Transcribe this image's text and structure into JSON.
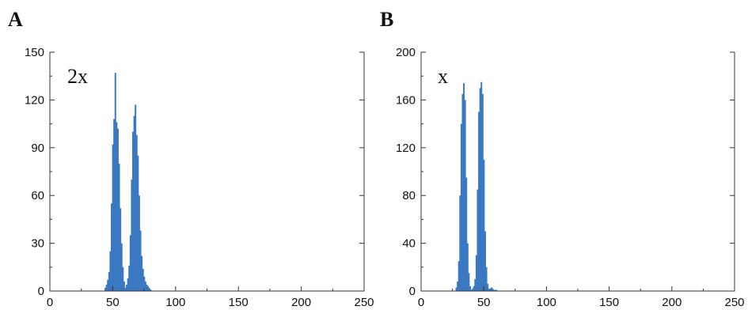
{
  "chart_data": [
    {
      "panel_label": "A",
      "inset_label": "2x",
      "type": "bar",
      "title": "",
      "xlabel": "",
      "ylabel": "",
      "xlim": [
        0,
        250
      ],
      "ylim": [
        0,
        150
      ],
      "x_ticks": [
        0,
        50,
        100,
        150,
        200,
        250
      ],
      "y_ticks": [
        0,
        30,
        60,
        90,
        120,
        150
      ],
      "grid": false,
      "bar_color": "#3a78c2",
      "x": [
        44,
        45,
        46,
        47,
        48,
        49,
        50,
        51,
        52,
        53,
        54,
        55,
        56,
        57,
        58,
        59,
        60,
        61,
        62,
        63,
        64,
        65,
        66,
        67,
        68,
        69,
        70,
        71,
        72,
        73,
        74,
        75,
        76,
        77,
        78,
        79,
        80
      ],
      "values": [
        2,
        4,
        7,
        12,
        25,
        55,
        92,
        108,
        137,
        106,
        102,
        80,
        52,
        30,
        15,
        6,
        2,
        4,
        8,
        16,
        35,
        70,
        100,
        110,
        117,
        98,
        85,
        60,
        38,
        22,
        14,
        9,
        6,
        4,
        3,
        2,
        1
      ]
    },
    {
      "panel_label": "B",
      "inset_label": "x",
      "type": "bar",
      "title": "",
      "xlabel": "",
      "ylabel": "",
      "xlim": [
        0,
        250
      ],
      "ylim": [
        0,
        200
      ],
      "x_ticks": [
        0,
        50,
        100,
        150,
        200,
        250
      ],
      "y_ticks": [
        0,
        40,
        80,
        120,
        160,
        200
      ],
      "grid": false,
      "bar_color": "#3a78c2",
      "x": [
        28,
        29,
        30,
        31,
        32,
        33,
        34,
        35,
        36,
        37,
        38,
        39,
        40,
        41,
        42,
        43,
        44,
        45,
        46,
        47,
        48,
        49,
        50,
        51,
        52,
        53,
        54,
        55,
        56,
        57,
        58,
        59,
        60
      ],
      "values": [
        3,
        8,
        25,
        80,
        140,
        165,
        174,
        160,
        95,
        40,
        15,
        4,
        1,
        2,
        4,
        10,
        30,
        85,
        150,
        170,
        175,
        165,
        110,
        50,
        20,
        6,
        2,
        2,
        3,
        2,
        1,
        1,
        1
      ]
    }
  ]
}
